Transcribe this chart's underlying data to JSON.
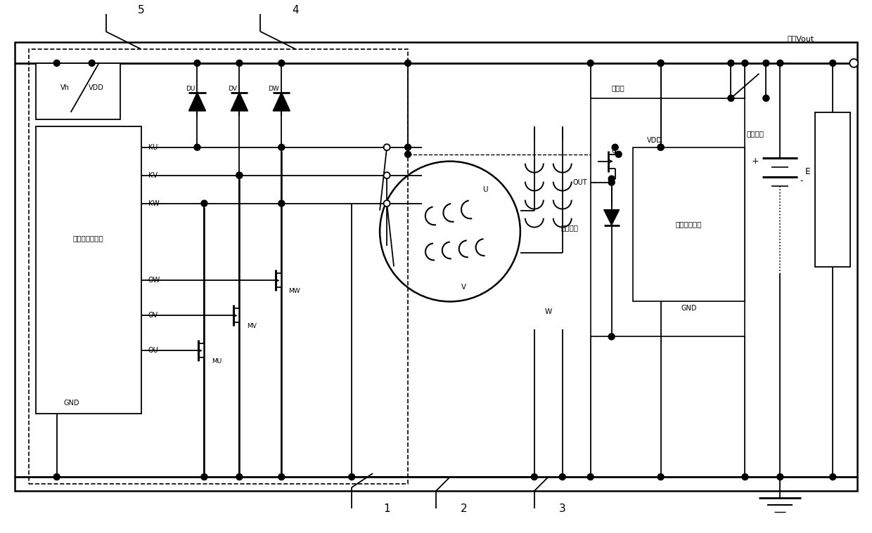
{
  "bg_color": "#ffffff",
  "fig_width": 12.4,
  "fig_height": 7.59,
  "dpi": 100,
  "texts": {
    "num5": "5",
    "num4": "4",
    "num1": "1",
    "num2": "2",
    "num3": "3",
    "Vh": "Vh",
    "VDD": "VDD",
    "DU": "DU",
    "DV": "DV",
    "DW": "DW",
    "KU": "KU",
    "KV": "KV",
    "KW": "KW",
    "OW": "OW",
    "OV": "OV",
    "OU": "OU",
    "GND": "GND",
    "MU": "MU",
    "MV": "MV",
    "MW": "MW",
    "U": "U",
    "V": "V",
    "W": "W",
    "C": "C",
    "OUT": "OUT",
    "VDD2": "VDD",
    "GND2": "GND",
    "E": "E",
    "rect_ctrl": "整流器控制电路",
    "reg_ctrl": "调压控制电路",
    "regulator": "调压器",
    "exciter": "助磁线圈",
    "ignition": "点火开关",
    "output": "输出Vout"
  }
}
